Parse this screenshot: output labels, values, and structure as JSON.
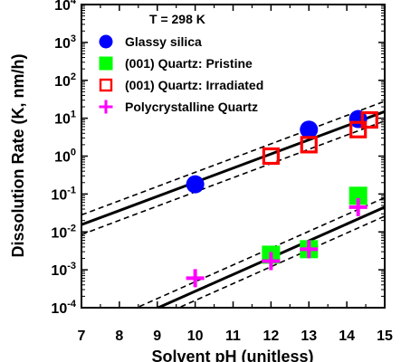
{
  "chart_data": {
    "type": "scatter",
    "title": "",
    "annotation": "T = 298 K",
    "xlabel": "Solvent pH (unitless)",
    "ylabel": "Dissolution Rate (K, nm/h)",
    "xlim": [
      7,
      15
    ],
    "ylim_log10": [
      -4,
      4
    ],
    "y_scale": "log",
    "x_ticks": [
      "7",
      "8",
      "9",
      "10",
      "11",
      "12",
      "13",
      "14",
      "15"
    ],
    "y_ticks": [
      {
        "base": "10",
        "exp": "-4"
      },
      {
        "base": "10",
        "exp": "-3"
      },
      {
        "base": "10",
        "exp": "-2"
      },
      {
        "base": "10",
        "exp": "-1"
      },
      {
        "base": "10",
        "exp": "0"
      },
      {
        "base": "10",
        "exp": "1"
      },
      {
        "base": "10",
        "exp": "2"
      },
      {
        "base": "10",
        "exp": "3"
      },
      {
        "base": "10",
        "exp": "4"
      }
    ],
    "legend_position": "top-left",
    "colors": {
      "glassy": "#0000ff",
      "pristine": "#00ff00",
      "irradiated": "#ff0000",
      "polycrystalline": "#ff00ff",
      "fit": "#000000"
    },
    "series": [
      {
        "name": "Glassy silica",
        "marker": "circle",
        "color": "#0000ff",
        "points": [
          [
            10,
            0.18
          ],
          [
            13,
            5.0
          ],
          [
            14.3,
            9.5
          ]
        ]
      },
      {
        "name": "(001) Quartz: Pristine",
        "marker": "square",
        "color": "#00ff00",
        "points": [
          [
            12,
            0.0025
          ],
          [
            13,
            0.0035
          ],
          [
            14.3,
            0.09
          ]
        ]
      },
      {
        "name": "(001) Quartz: Irradiated",
        "marker": "open-square",
        "color": "#ff0000",
        "points": [
          [
            12,
            1.0
          ],
          [
            13,
            2.0
          ],
          [
            14.3,
            5.0
          ],
          [
            14.6,
            9.0
          ]
        ]
      },
      {
        "name": "Polycrystalline Quartz",
        "marker": "plus",
        "color": "#ff00ff",
        "points": [
          [
            10,
            0.0006
          ],
          [
            12,
            0.0017
          ],
          [
            13,
            0.0035
          ],
          [
            14.3,
            0.045
          ]
        ]
      }
    ],
    "fit_lines": [
      {
        "style": "solid",
        "x": [
          7,
          15
        ],
        "y": [
          0.0155,
          15
        ]
      },
      {
        "style": "dashed",
        "x": [
          7,
          15
        ],
        "y": [
          0.0085,
          8.5
        ]
      },
      {
        "style": "dashed",
        "x": [
          7,
          15
        ],
        "y": [
          0.028,
          28
        ]
      },
      {
        "style": "solid",
        "x": [
          7,
          15
        ],
        "y": [
          1.26e-05,
          0.045
        ]
      },
      {
        "style": "dashed",
        "x": [
          7,
          15
        ],
        "y": [
          7.2e-06,
          0.026
        ]
      },
      {
        "style": "dashed",
        "x": [
          7,
          15
        ],
        "y": [
          2.25e-05,
          0.08
        ]
      }
    ]
  }
}
